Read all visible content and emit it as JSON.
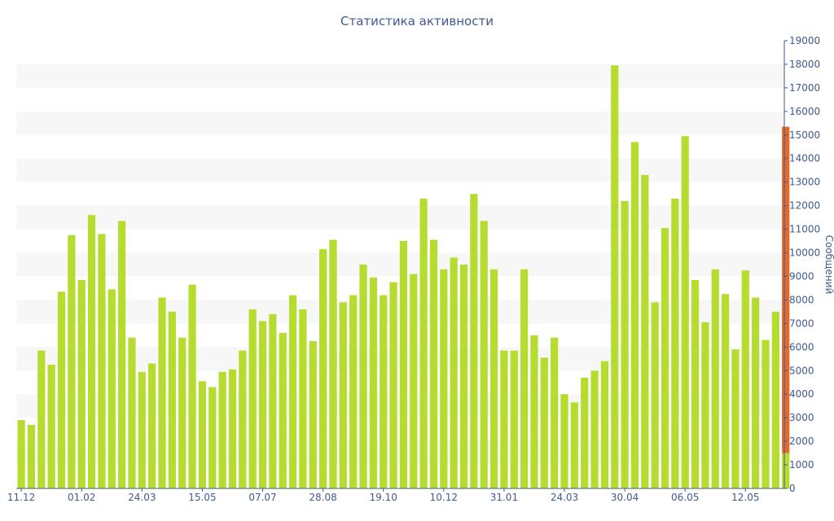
{
  "colors": {
    "bar": "#b5dc2f",
    "highlight": "#e26a2c",
    "band": "#f7f7f7",
    "axis": "#3e5a92",
    "text": "#3e5a92"
  },
  "chart_data": {
    "type": "bar",
    "title": "Статистика активности",
    "xlabel": "",
    "ylabel": "Сообщений",
    "ylim": [
      0,
      19000
    ],
    "y_ticks": [
      0,
      1000,
      2000,
      3000,
      4000,
      5000,
      6000,
      7000,
      8000,
      9000,
      10000,
      11000,
      12000,
      13000,
      14000,
      15000,
      16000,
      17000,
      18000,
      19000
    ],
    "x_tick_labels": [
      {
        "label": "11.12",
        "index": 0
      },
      {
        "label": "01.02",
        "index": 6
      },
      {
        "label": "24.03",
        "index": 12
      },
      {
        "label": "15.05",
        "index": 18
      },
      {
        "label": "07.07",
        "index": 24
      },
      {
        "label": "28.08",
        "index": 30
      },
      {
        "label": "19.10",
        "index": 36
      },
      {
        "label": "10.12",
        "index": 42
      },
      {
        "label": "31.01",
        "index": 48
      },
      {
        "label": "24.03",
        "index": 54
      },
      {
        "label": "30.04",
        "index": 60
      },
      {
        "label": "06.05",
        "index": 66
      },
      {
        "label": "12.05",
        "index": 72
      }
    ],
    "grid": "alternating horizontal bands",
    "legend": "none",
    "y_axis_position": "right",
    "values": [
      2900,
      2700,
      5850,
      5250,
      8350,
      10750,
      8850,
      11600,
      10800,
      8450,
      11350,
      6400,
      4950,
      5300,
      8100,
      7500,
      6400,
      8650,
      4550,
      4300,
      4950,
      5050,
      5850,
      7600,
      7100,
      7400,
      6600,
      8200,
      7600,
      6250,
      10150,
      10550,
      7900,
      8200,
      9500,
      8950,
      8200,
      8750,
      10500,
      9100,
      12300,
      10550,
      9300,
      9800,
      9500,
      12500,
      11350,
      9300,
      5850,
      5850,
      9300,
      6500,
      5550,
      6400,
      4000,
      3650,
      4700,
      5000,
      5400,
      17950,
      12200,
      14700,
      13300,
      7900,
      11050,
      12300,
      14950,
      8850,
      7050,
      9300,
      8250,
      5900,
      9250,
      8100,
      6300,
      7500
    ],
    "highlight": {
      "index": 76,
      "value": 15350,
      "base": 1500
    }
  }
}
